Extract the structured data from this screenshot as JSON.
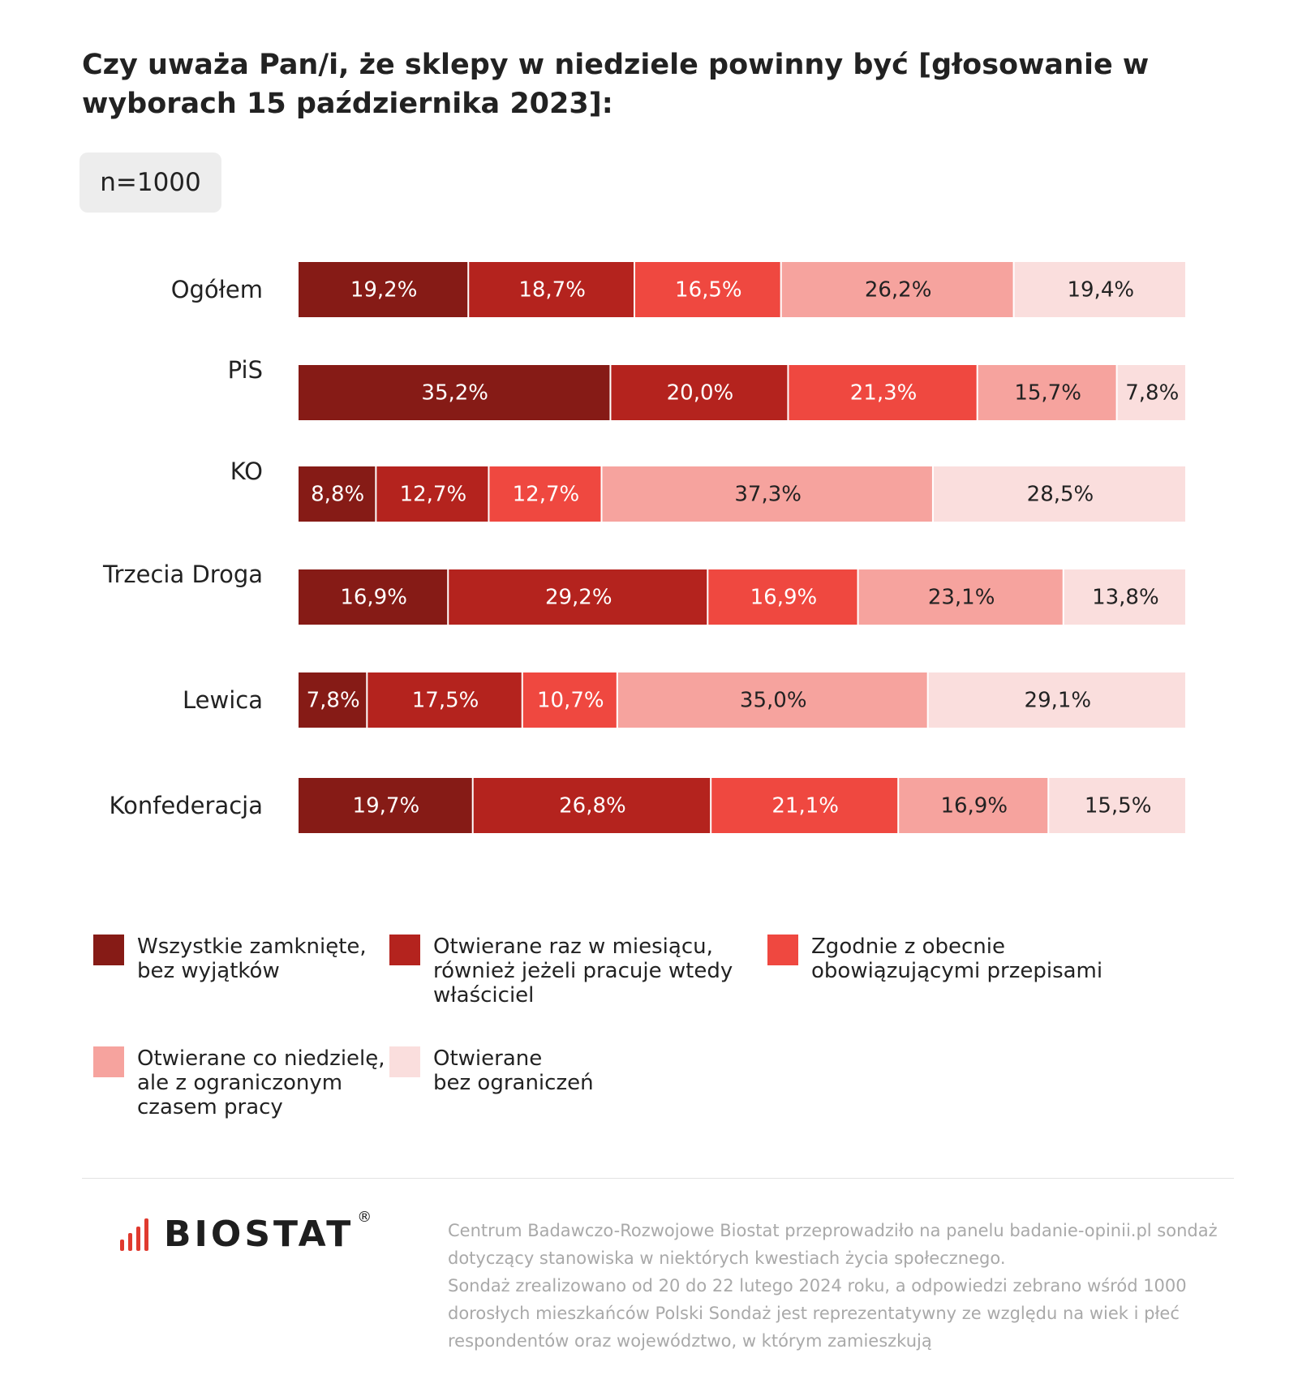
{
  "title": "Czy uważa Pan/i, że sklepy w niedziele powinny być [głosowanie w wyborach 15 października 2023]:",
  "sample_badge": "n=1000",
  "chart_data": {
    "type": "bar",
    "orientation": "horizontal-stacked-100",
    "categories": [
      "Ogółem",
      "PiS",
      "KO",
      "Trzecia Droga",
      "Lewica",
      "Konfederacja"
    ],
    "series": [
      {
        "name": "Wszystkie zamknięte,\nbez wyjątków",
        "color": "#861b16",
        "values": [
          19.2,
          35.2,
          8.8,
          16.9,
          7.8,
          19.7
        ],
        "labels": [
          "19,2%",
          "35,2%",
          "8,8%",
          "16,9%",
          "7,8%",
          "19,7%"
        ]
      },
      {
        "name": "Otwierane raz w miesiącu,\nrównież jeżeli pracuje wtedy\nwłaściciel",
        "color": "#b4231e",
        "values": [
          18.7,
          20.0,
          12.7,
          29.2,
          17.5,
          26.8
        ],
        "labels": [
          "18,7%",
          "20,0%",
          "12,7%",
          "29,2%",
          "17,5%",
          "26,8%"
        ]
      },
      {
        "name": "Zgodnie z obecnie\n obowiązującymi przepisami",
        "color": "#ef4840",
        "values": [
          16.5,
          21.3,
          12.7,
          16.9,
          10.7,
          21.1
        ],
        "labels": [
          "16,5%",
          "21,3%",
          "12,7%",
          "16,9%",
          "10,7%",
          "21,1%"
        ]
      },
      {
        "name": "Otwierane co niedzielę,\nale z ograniczonym\nczasem pracy",
        "color": "#f6a39e",
        "values": [
          26.2,
          15.7,
          37.3,
          23.1,
          35.0,
          16.9
        ],
        "labels": [
          "26,2%",
          "15,7%",
          "37,3%",
          "23,1%",
          "35,0%",
          "16,9%"
        ]
      },
      {
        "name": "Otwierane\nbez ograniczeń",
        "color": "#fadedd",
        "values": [
          19.4,
          7.8,
          28.5,
          13.8,
          29.1,
          15.5
        ],
        "labels": [
          "19,4%",
          "7,8%",
          "28,5%",
          "13,8%",
          "29,1%",
          "15,5%"
        ]
      }
    ],
    "label_colors": [
      "#ffffff",
      "#ffffff",
      "#ffffff",
      "#222222",
      "#222222"
    ],
    "xlim": [
      0,
      100
    ],
    "legend_position": "bottom"
  },
  "logo": {
    "text": "BIOSTAT",
    "registered": "®"
  },
  "footnote": [
    "Centrum Badawczo-Rozwojowe Biostat przeprowadziło na panelu badanie-opinii.pl sondaż dotyczący stanowiska w niektórych kwestiach życia społecznego.",
    "Sondaż zrealizowano od 20 do 22 lutego 2024 roku, a odpowiedzi zebrano wśród 1000 dorosłych mieszkańców Polski Sondaż jest reprezentatywny ze względu na wiek i płeć respondentów oraz województwo, w którym zamieszkują"
  ]
}
